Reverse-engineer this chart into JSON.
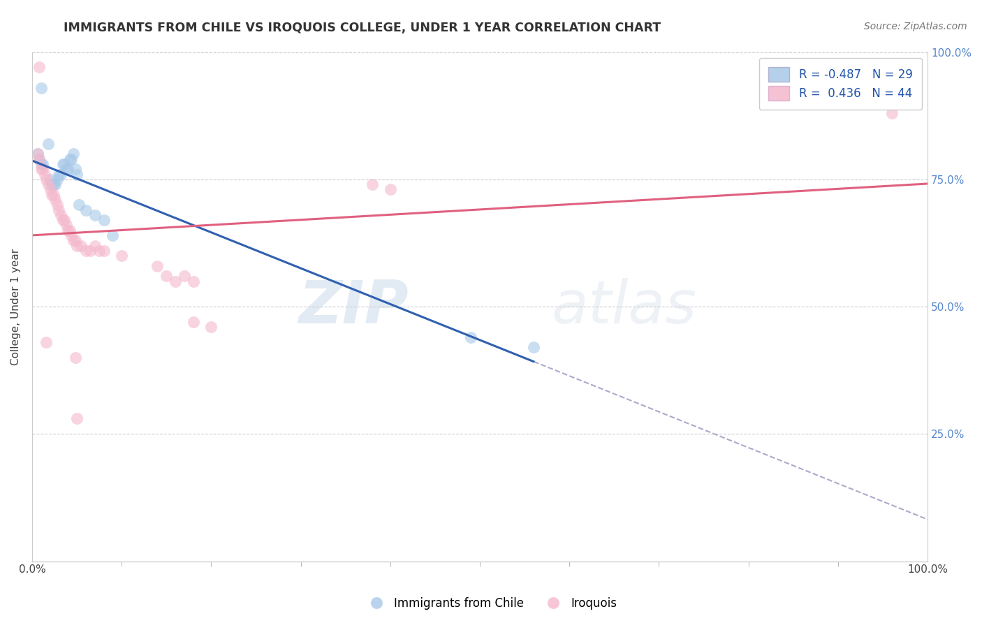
{
  "title": "IMMIGRANTS FROM CHILE VS IROQUOIS COLLEGE, UNDER 1 YEAR CORRELATION CHART",
  "source": "Source: ZipAtlas.com",
  "ylabel": "College, Under 1 year",
  "watermark_zip": "ZIP",
  "watermark_atlas": "atlas",
  "legend_blue_r": "-0.487",
  "legend_blue_n": "29",
  "legend_pink_r": "0.436",
  "legend_pink_n": "44",
  "blue_color": "#a8c8e8",
  "pink_color": "#f4b8cc",
  "blue_line_color": "#3060b0",
  "pink_line_color": "#e06080",
  "dashed_line_color": "#aaaacc",
  "blue_scatter": [
    [
      0.01,
      0.93
    ],
    [
      0.018,
      0.82
    ],
    [
      0.02,
      0.75
    ],
    [
      0.022,
      0.74
    ],
    [
      0.024,
      0.74
    ],
    [
      0.026,
      0.74
    ],
    [
      0.028,
      0.75
    ],
    [
      0.03,
      0.76
    ],
    [
      0.032,
      0.76
    ],
    [
      0.034,
      0.78
    ],
    [
      0.036,
      0.78
    ],
    [
      0.038,
      0.77
    ],
    [
      0.04,
      0.77
    ],
    [
      0.042,
      0.79
    ],
    [
      0.044,
      0.79
    ],
    [
      0.046,
      0.8
    ],
    [
      0.006,
      0.8
    ],
    [
      0.008,
      0.79
    ],
    [
      0.01,
      0.78
    ],
    [
      0.012,
      0.78
    ],
    [
      0.048,
      0.77
    ],
    [
      0.05,
      0.76
    ],
    [
      0.052,
      0.7
    ],
    [
      0.06,
      0.69
    ],
    [
      0.07,
      0.68
    ],
    [
      0.08,
      0.67
    ],
    [
      0.09,
      0.64
    ],
    [
      0.49,
      0.44
    ],
    [
      0.56,
      0.42
    ]
  ],
  "pink_scatter": [
    [
      0.008,
      0.97
    ],
    [
      0.006,
      0.8
    ],
    [
      0.008,
      0.79
    ],
    [
      0.01,
      0.77
    ],
    [
      0.012,
      0.77
    ],
    [
      0.014,
      0.76
    ],
    [
      0.016,
      0.75
    ],
    [
      0.018,
      0.74
    ],
    [
      0.02,
      0.73
    ],
    [
      0.022,
      0.72
    ],
    [
      0.024,
      0.72
    ],
    [
      0.026,
      0.71
    ],
    [
      0.028,
      0.7
    ],
    [
      0.03,
      0.69
    ],
    [
      0.032,
      0.68
    ],
    [
      0.034,
      0.67
    ],
    [
      0.036,
      0.67
    ],
    [
      0.038,
      0.66
    ],
    [
      0.04,
      0.65
    ],
    [
      0.042,
      0.65
    ],
    [
      0.044,
      0.64
    ],
    [
      0.046,
      0.63
    ],
    [
      0.048,
      0.63
    ],
    [
      0.05,
      0.62
    ],
    [
      0.055,
      0.62
    ],
    [
      0.06,
      0.61
    ],
    [
      0.065,
      0.61
    ],
    [
      0.07,
      0.62
    ],
    [
      0.075,
      0.61
    ],
    [
      0.08,
      0.61
    ],
    [
      0.1,
      0.6
    ],
    [
      0.14,
      0.58
    ],
    [
      0.15,
      0.56
    ],
    [
      0.16,
      0.55
    ],
    [
      0.17,
      0.56
    ],
    [
      0.18,
      0.55
    ],
    [
      0.016,
      0.43
    ],
    [
      0.18,
      0.47
    ],
    [
      0.2,
      0.46
    ],
    [
      0.38,
      0.74
    ],
    [
      0.4,
      0.73
    ],
    [
      0.048,
      0.4
    ],
    [
      0.96,
      0.88
    ],
    [
      0.05,
      0.28
    ]
  ],
  "xlim": [
    0.0,
    1.0
  ],
  "ylim": [
    0.0,
    1.0
  ],
  "xtick_positions": [
    0.0,
    0.1,
    0.2,
    0.3,
    0.4,
    0.5,
    0.6,
    0.7,
    0.8,
    0.9,
    1.0
  ],
  "ytick_positions": [
    0.0,
    0.25,
    0.5,
    0.75,
    1.0
  ]
}
